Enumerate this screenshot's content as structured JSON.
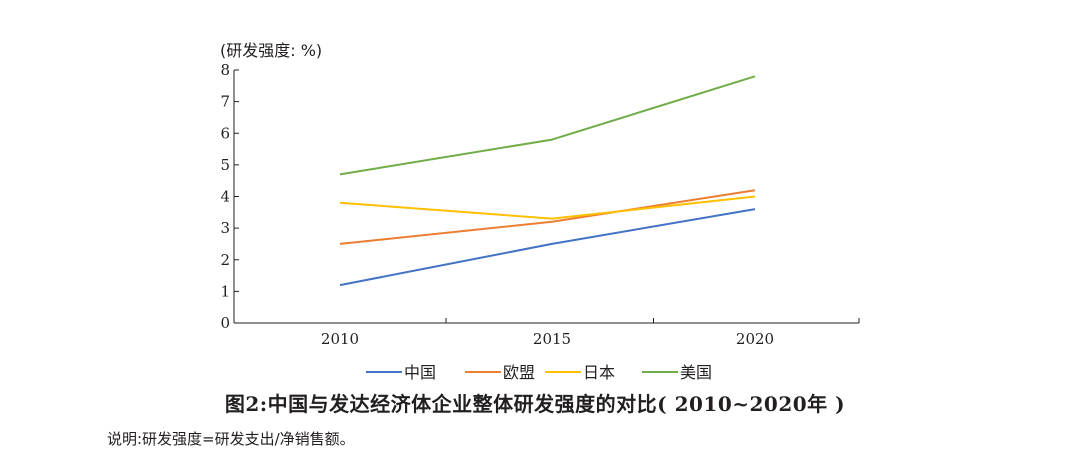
{
  "chart_data": {
    "type": "line",
    "unit_label": "(研发强度: %)",
    "categories": [
      "2010",
      "2015",
      "2020"
    ],
    "yticks": [
      "0",
      "1",
      "2",
      "3",
      "4",
      "5",
      "6",
      "7",
      "8"
    ],
    "ylim": [
      0,
      8
    ],
    "grid": false,
    "legend_position": "bottom",
    "series": [
      {
        "name": "中国",
        "color": "#4472c4",
        "values": [
          1.2,
          2.5,
          3.6
        ]
      },
      {
        "name": "欧盟",
        "color": "#ed7d31",
        "values": [
          2.5,
          3.2,
          4.2
        ]
      },
      {
        "name": "日本",
        "color": "#ffc000",
        "values": [
          3.8,
          3.3,
          4.0
        ]
      },
      {
        "name": "美国",
        "color": "#70ad47",
        "values": [
          4.7,
          5.8,
          7.8
        ]
      }
    ]
  },
  "caption": "图2:中国与发达经济体企业整体研发强度的对比( 2010~2020年 )",
  "note": "说明:研发强度=研发支出/净销售额。"
}
